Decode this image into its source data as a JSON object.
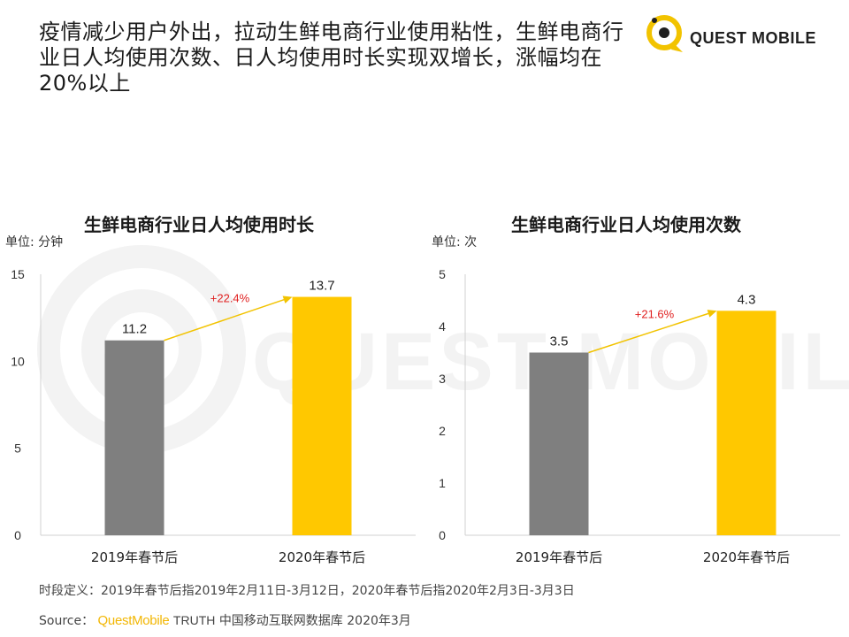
{
  "headline": "疫情减少用户外出，拉动生鲜电商行业使用粘性，生鲜电商行业日人均使用次数、日人均使用时长实现双增长，涨幅均在20%以上",
  "logo": {
    "text": "QUEST MOBILE",
    "icon": "quest-mobile-logo-icon",
    "accent": "#F2C300"
  },
  "watermark_text": "QUEST MOBILE",
  "colors": {
    "bar_2019": "#7F7F7F",
    "bar_2020": "#FFC800",
    "arrow": "#F2C300",
    "growth_label": "#E02020",
    "axis": "#D0D0D0"
  },
  "chart_data": [
    {
      "type": "bar",
      "title": "生鲜电商行业日人均使用时长",
      "unit": "单位: 分钟",
      "categories": [
        "2019年春节后",
        "2020年春节后"
      ],
      "values": [
        11.2,
        13.7
      ],
      "value_labels": [
        "11.2",
        "13.7"
      ],
      "ylim": [
        0,
        15
      ],
      "yticks": [
        0,
        5,
        10,
        15
      ],
      "growth_label": "+22.4%",
      "grid": false
    },
    {
      "type": "bar",
      "title": "生鲜电商行业日人均使用次数",
      "unit": "单位: 次",
      "categories": [
        "2019年春节后",
        "2020年春节后"
      ],
      "values": [
        3.5,
        4.3
      ],
      "value_labels": [
        "3.5",
        "4.3"
      ],
      "ylim": [
        0,
        5
      ],
      "yticks": [
        0,
        1,
        2,
        3,
        4,
        5
      ],
      "growth_label": "+21.6%",
      "grid": false
    }
  ],
  "footnote": "时段定义：2019年春节后指2019年2月11日-3月12日，2020年春节后指2020年2月3日-3月3日",
  "source": {
    "label": "Source：",
    "brand": "QuestMobile",
    "truth": "TRUTH",
    "rest": "中国移动互联网数据库 2020年3月"
  }
}
